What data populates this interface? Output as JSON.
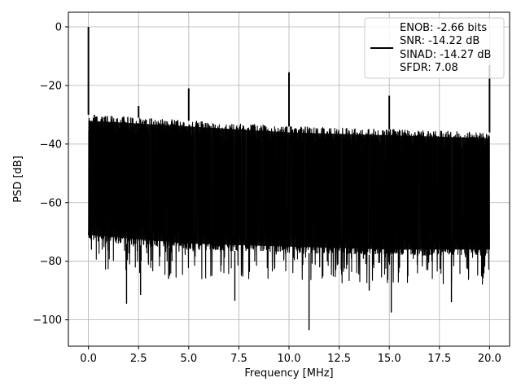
{
  "chart_data": {
    "type": "line",
    "title": "",
    "xlabel": "Frequency [MHz]",
    "ylabel": "PSD [dB]",
    "xlim": [
      -1.0,
      21.0
    ],
    "ylim": [
      -109,
      5
    ],
    "xticks": [
      0.0,
      2.5,
      5.0,
      7.5,
      10.0,
      12.5,
      15.0,
      17.5,
      20.0
    ],
    "xtick_labels": [
      "0.0",
      "2.5",
      "5.0",
      "7.5",
      "10.0",
      "12.5",
      "15.0",
      "17.5",
      "20.0"
    ],
    "yticks": [
      0,
      -20,
      -40,
      -60,
      -80,
      -100
    ],
    "ytick_labels": [
      "0",
      "−20",
      "−40",
      "−60",
      "−80",
      "−100"
    ],
    "grid": true,
    "legend_placement": "top-right",
    "legend_entries": [
      "ENOB: -2.66 bits",
      "SNR: -14.22 dB",
      "SINAD: -14.27 dB",
      "SFDR: 7.08"
    ],
    "series_color": "#000000",
    "noise_band": {
      "x_start": 0.0,
      "x_end": 20.0,
      "upper_envelope": [
        [
          0.0,
          -30
        ],
        [
          5.0,
          -32
        ],
        [
          10.0,
          -34
        ],
        [
          15.0,
          -35
        ],
        [
          20.0,
          -36
        ]
      ],
      "lower_envelope": [
        [
          0.0,
          -73
        ],
        [
          5.0,
          -76
        ],
        [
          10.0,
          -77
        ],
        [
          15.0,
          -78
        ],
        [
          20.0,
          -78
        ]
      ]
    },
    "peaks": [
      {
        "x": 0.0,
        "y": 0
      },
      {
        "x": 2.5,
        "y": -27
      },
      {
        "x": 5.0,
        "y": -21
      },
      {
        "x": 10.0,
        "y": -15.5
      },
      {
        "x": 15.0,
        "y": -23.5
      },
      {
        "x": 20.0,
        "y": -13
      }
    ],
    "dips": [
      {
        "x": 1.9,
        "y": -94.5
      },
      {
        "x": 2.6,
        "y": -91.5
      },
      {
        "x": 4.0,
        "y": -86
      },
      {
        "x": 7.3,
        "y": -93.5
      },
      {
        "x": 11.0,
        "y": -103.5
      },
      {
        "x": 14.0,
        "y": -90
      },
      {
        "x": 15.1,
        "y": -97.5
      },
      {
        "x": 18.1,
        "y": -94
      }
    ]
  }
}
